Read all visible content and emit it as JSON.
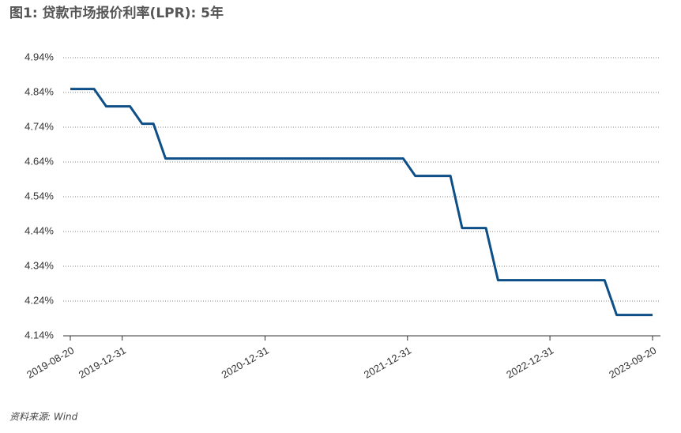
{
  "chart_data": {
    "type": "line",
    "title": "图1: 贷款市场报价利率(LPR): 5年",
    "source": "资料来源: Wind",
    "x": [
      "2019-08-20",
      "2019-09-20",
      "2019-10-20",
      "2019-11-20",
      "2019-12-20",
      "2020-01-20",
      "2020-02-20",
      "2020-03-20",
      "2020-04-20",
      "2020-05-20",
      "2020-06-20",
      "2020-07-20",
      "2020-08-20",
      "2020-09-20",
      "2020-10-20",
      "2020-11-20",
      "2020-12-20",
      "2021-01-20",
      "2021-02-20",
      "2021-03-20",
      "2021-04-20",
      "2021-05-20",
      "2021-06-20",
      "2021-07-20",
      "2021-08-20",
      "2021-09-20",
      "2021-10-20",
      "2021-11-20",
      "2021-12-20",
      "2022-01-20",
      "2022-02-20",
      "2022-03-20",
      "2022-04-20",
      "2022-05-20",
      "2022-06-20",
      "2022-07-20",
      "2022-08-20",
      "2022-09-20",
      "2022-10-20",
      "2022-11-20",
      "2022-12-20",
      "2023-01-20",
      "2023-02-20",
      "2023-03-20",
      "2023-04-20",
      "2023-05-20",
      "2023-06-20",
      "2023-07-20",
      "2023-08-20",
      "2023-09-20"
    ],
    "series": [
      {
        "color": "#0d4f86",
        "values": [
          4.85,
          4.85,
          4.85,
          4.8,
          4.8,
          4.8,
          4.75,
          4.75,
          4.65,
          4.65,
          4.65,
          4.65,
          4.65,
          4.65,
          4.65,
          4.65,
          4.65,
          4.65,
          4.65,
          4.65,
          4.65,
          4.65,
          4.65,
          4.65,
          4.65,
          4.65,
          4.65,
          4.65,
          4.65,
          4.6,
          4.6,
          4.6,
          4.6,
          4.45,
          4.45,
          4.45,
          4.3,
          4.3,
          4.3,
          4.3,
          4.3,
          4.3,
          4.3,
          4.3,
          4.3,
          4.3,
          4.2,
          4.2,
          4.2,
          4.2
        ]
      }
    ],
    "xlim": [
      "2019-08-20",
      "2023-09-20"
    ],
    "xticks": [
      "2019-08-20",
      "2019-12-31",
      "2020-12-31",
      "2021-12-31",
      "2022-12-31",
      "2023-09-20"
    ],
    "ylim": [
      4.14,
      4.94
    ],
    "yticks": [
      {
        "value": 4.14,
        "label": "4.14%"
      },
      {
        "value": 4.24,
        "label": "4.24%"
      },
      {
        "value": 4.34,
        "label": "4.34%"
      },
      {
        "value": 4.44,
        "label": "4.44%"
      },
      {
        "value": 4.54,
        "label": "4.54%"
      },
      {
        "value": 4.64,
        "label": "4.64%"
      },
      {
        "value": 4.74,
        "label": "4.74%"
      },
      {
        "value": 4.84,
        "label": "4.84%"
      },
      {
        "value": 4.94,
        "label": "4.94%"
      }
    ],
    "grid": true
  }
}
